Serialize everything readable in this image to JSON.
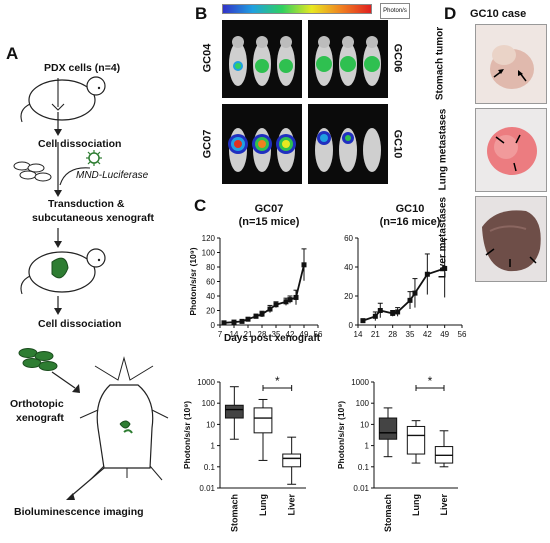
{
  "panels": {
    "a": "A",
    "b": "B",
    "c": "C",
    "d": "D"
  },
  "panel_a": {
    "title": "PDX cells (n=4)",
    "step1": "Cell dissociation",
    "vector": "MND-Luciferase",
    "step2_line1": "Transduction &",
    "step2_line2": "subcutaneous xenograft",
    "step3": "Cell dissociation",
    "step4_line1": "Orthotopic",
    "step4_line2": "xenograft",
    "step5": "Bioluminescence imaging"
  },
  "panel_b": {
    "labels": [
      "GC04",
      "GC06",
      "GC07",
      "GC10"
    ],
    "colorbar_label": "Photon/s"
  },
  "panel_d": {
    "title": "GC10 case",
    "labels": [
      "Stomach tumor",
      "Lung metastases",
      "Liver metastases"
    ]
  },
  "colors": {
    "line": "#111111",
    "box_dark": "#444444",
    "box_light": "#ffffff",
    "lesion": "#2e7d32"
  },
  "chart_data": [
    {
      "type": "line",
      "title": "GC07",
      "subtitle": "(n=15 mice)",
      "xlabel": "Days post xenograft",
      "ylabel": "Photon/s/sr (10⁹)",
      "xlim": [
        7,
        56
      ],
      "xticks": [
        7,
        14,
        21,
        28,
        35,
        42,
        49,
        56
      ],
      "ylim": [
        0,
        120
      ],
      "yticks": [
        0,
        20,
        40,
        60,
        80,
        100,
        120
      ],
      "x": [
        9,
        14,
        18,
        21,
        25,
        28,
        32,
        35,
        40,
        42,
        45,
        49
      ],
      "y": [
        3,
        4,
        5,
        8,
        12,
        15,
        22,
        28,
        32,
        35,
        38,
        83
      ],
      "err": [
        1,
        1,
        1.5,
        2,
        3,
        4,
        5,
        4,
        5,
        5,
        10,
        22
      ]
    },
    {
      "type": "line",
      "title": "GC10",
      "subtitle": "(n=16 mice)",
      "xlabel": "",
      "ylabel": "",
      "xlim": [
        14,
        56
      ],
      "xticks": [
        14,
        21,
        28,
        35,
        42,
        49,
        56
      ],
      "ylim": [
        0,
        60
      ],
      "yticks": [
        0,
        20,
        40,
        60
      ],
      "x": [
        16,
        21,
        23,
        28,
        30,
        35,
        37,
        42,
        49
      ],
      "y": [
        3,
        6,
        10,
        8,
        9,
        17,
        22,
        35,
        39
      ],
      "err": [
        1,
        3,
        5,
        2,
        3,
        6,
        10,
        14,
        20
      ]
    },
    {
      "type": "box",
      "ylabel": "Photon/s/sr (10⁹)",
      "scale": "log",
      "ylim": [
        0.01,
        1000
      ],
      "yticks": [
        "1000",
        "100",
        "10",
        "1",
        "0.1",
        "0.01"
      ],
      "categories": [
        "Stomach",
        "Lung",
        "Liver"
      ],
      "series": [
        {
          "min": 2,
          "q1": 20,
          "median": 50,
          "q3": 80,
          "max": 600,
          "fill": "dark"
        },
        {
          "min": 0.2,
          "q1": 4,
          "median": 20,
          "q3": 60,
          "max": 150,
          "fill": "light"
        },
        {
          "min": 0.015,
          "q1": 0.1,
          "median": 0.25,
          "q3": 0.4,
          "max": 2.5,
          "fill": "light"
        }
      ],
      "significance": {
        "between": [
          1,
          2
        ],
        "label": "*"
      }
    },
    {
      "type": "box",
      "ylabel": "Photon/s/sr (10⁹)",
      "scale": "log",
      "ylim": [
        0.01,
        1000
      ],
      "yticks": [
        "1000",
        "100",
        "10",
        "1",
        "0.1",
        "0.01"
      ],
      "categories": [
        "Stomach",
        "Lung",
        "Liver"
      ],
      "series": [
        {
          "min": 0.3,
          "q1": 2,
          "median": 4,
          "q3": 20,
          "max": 60,
          "fill": "dark"
        },
        {
          "min": 0.15,
          "q1": 0.4,
          "median": 3,
          "q3": 8,
          "max": 15,
          "fill": "light"
        },
        {
          "min": 0.1,
          "q1": 0.15,
          "median": 0.35,
          "q3": 0.9,
          "max": 5,
          "fill": "light"
        }
      ],
      "significance": {
        "between": [
          1,
          2
        ],
        "label": "*"
      }
    }
  ]
}
